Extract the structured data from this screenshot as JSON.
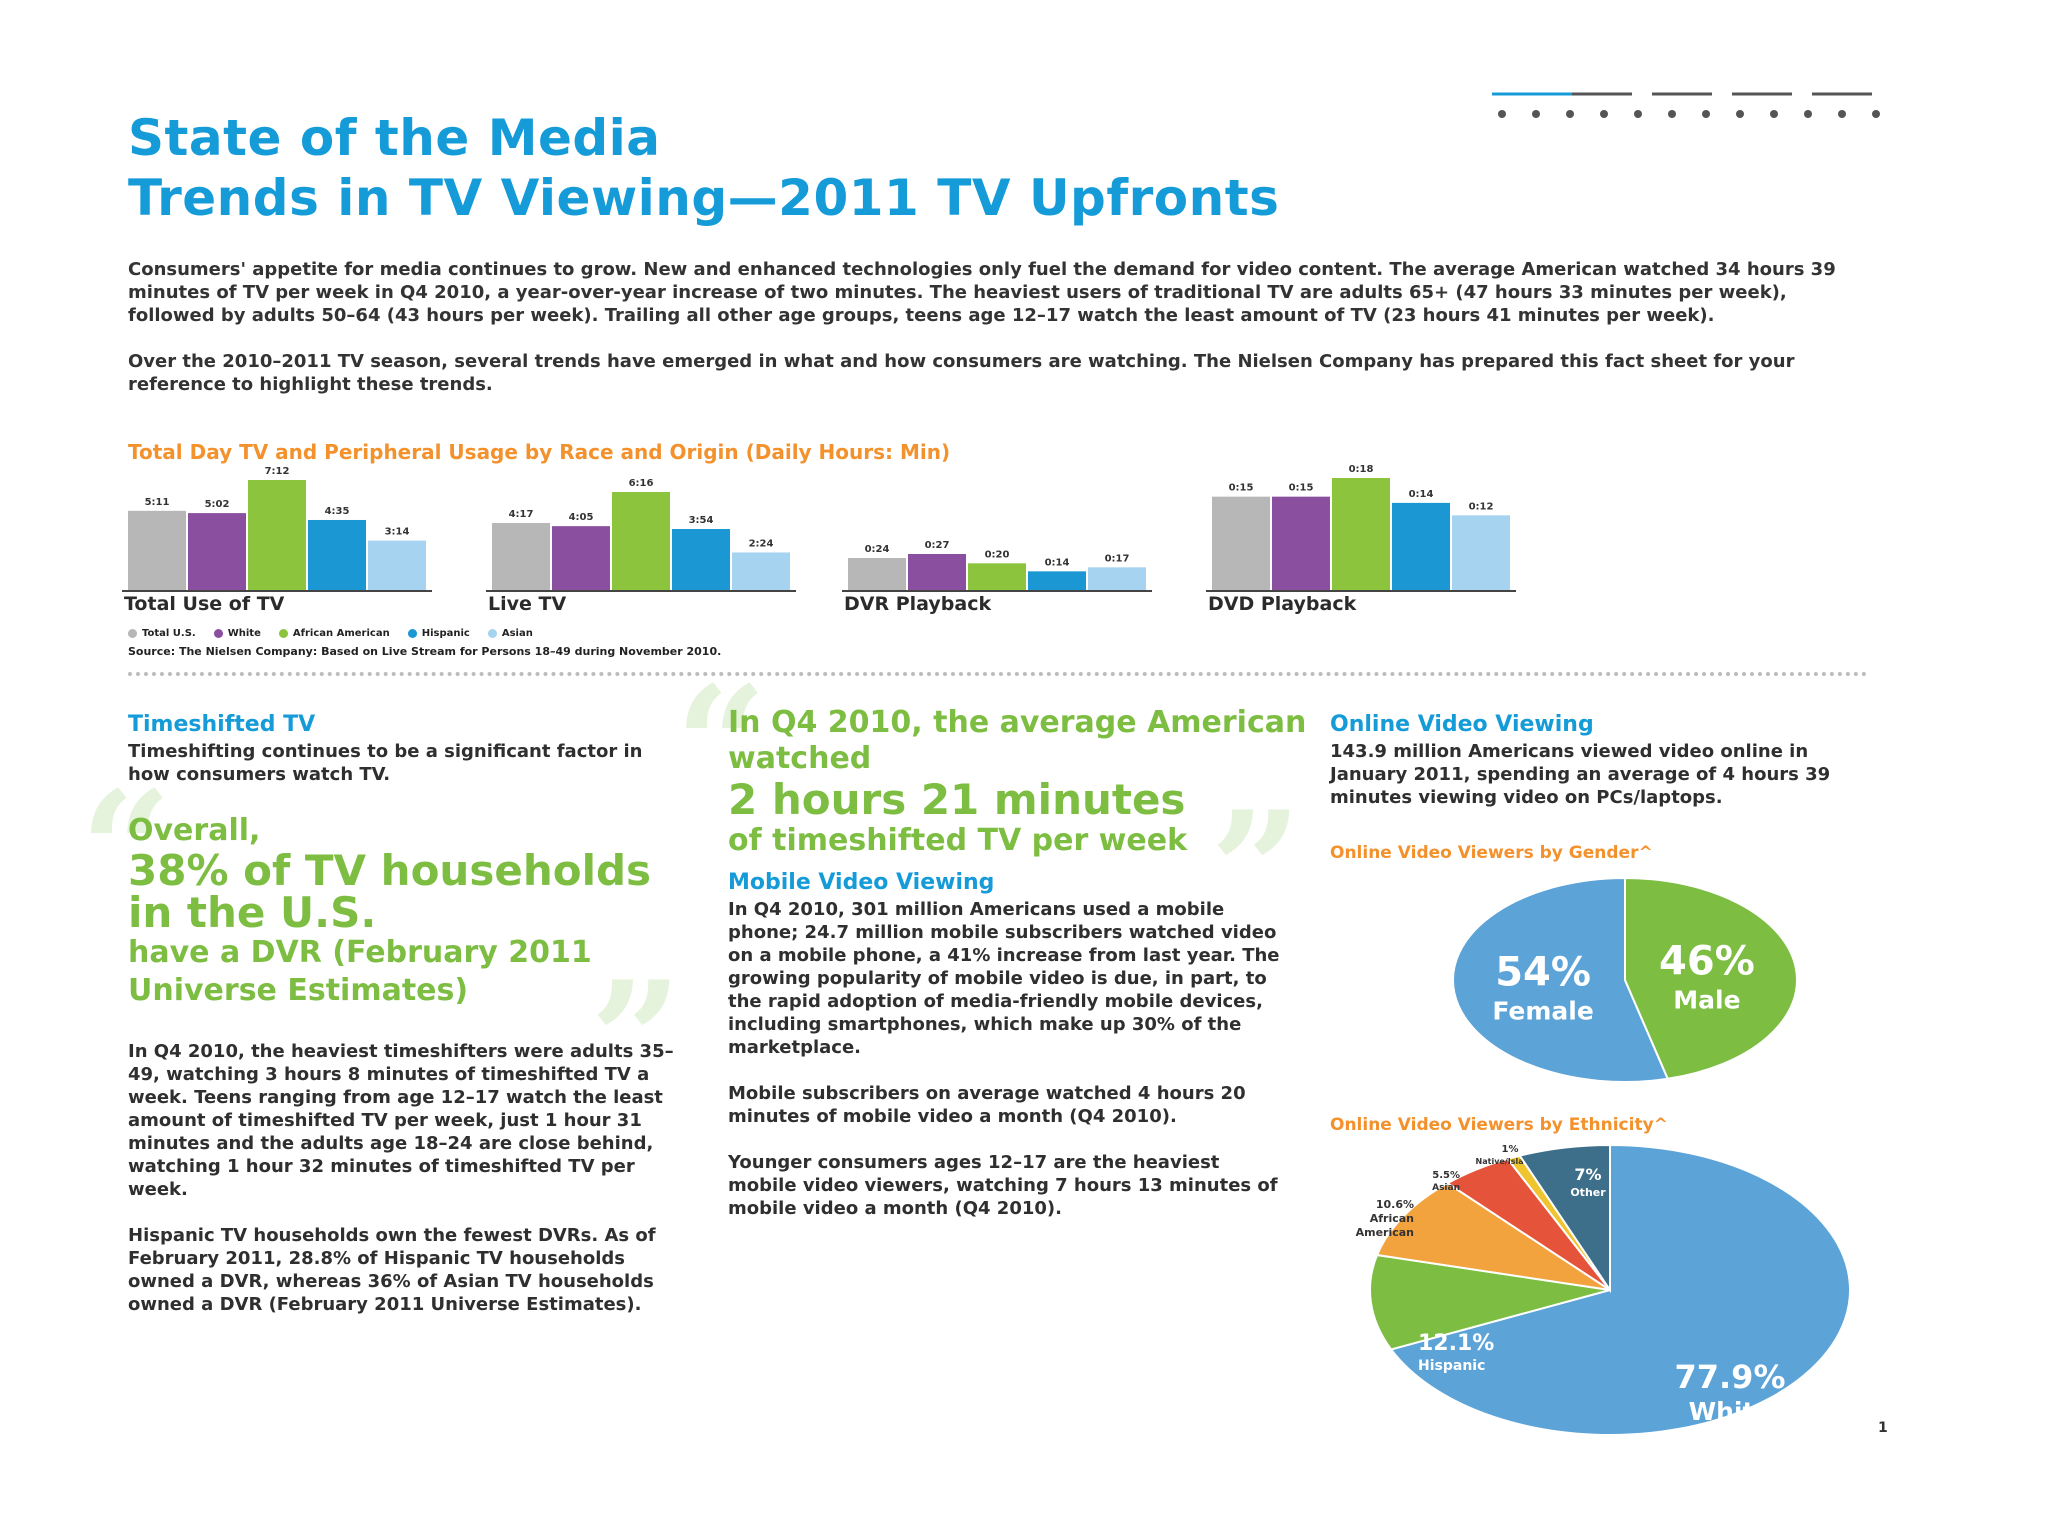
{
  "header": {
    "title_line1": "State of the Media",
    "title_line2": "Trends in TV Viewing—2011 TV Upfronts"
  },
  "intro": {
    "p1": "Consumers' appetite for media continues to grow. New and enhanced technologies only fuel the demand for video content. The average American watched 34 hours 39 minutes of TV per week in Q4 2010, a year-over-year increase of two minutes. The heaviest users of traditional TV are adults 65+ (47 hours 33 minutes per week), followed by adults 50–64 (43 hours per week). Trailing all other age groups, teens age 12–17 watch the least amount of TV (23 hours 41 minutes per week).",
    "p2": "Over the 2010–2011 TV season, several trends have emerged in what and how consumers are watching. The Nielsen Company has prepared this fact sheet for your reference to highlight these trends."
  },
  "colors": {
    "total_us": "#b7b7b7",
    "white": "#8b4fa0",
    "african_american": "#8cc43d",
    "hispanic": "#1b97d4",
    "asian": "#a6d3ef",
    "title_blue": "#149bd8",
    "orange": "#f3922d",
    "green": "#7cbd42"
  },
  "chart_data": [
    {
      "type": "bar",
      "title": "Total Day TV and Peripheral Usage by Race and Origin (Daily Hours: Min)",
      "categories": [
        "Total Use of TV",
        "Live TV",
        "DVR Playback",
        "DVD Playback"
      ],
      "series": [
        {
          "name": "Total U.S.",
          "labels": [
            "5:11",
            "4:17",
            "0:24",
            "0:15"
          ],
          "values": [
            311,
            257,
            24,
            15
          ]
        },
        {
          "name": "White",
          "labels": [
            "5:02",
            "4:05",
            "0:27",
            "0:15"
          ],
          "values": [
            302,
            245,
            27,
            15
          ]
        },
        {
          "name": "African American",
          "labels": [
            "7:12",
            "6:16",
            "0:20",
            "0:18"
          ],
          "values": [
            432,
            376,
            20,
            18
          ]
        },
        {
          "name": "Hispanic",
          "labels": [
            "4:35",
            "3:54",
            "0:14",
            "0:14"
          ],
          "values": [
            275,
            234,
            14,
            14
          ]
        },
        {
          "name": "Asian",
          "labels": [
            "3:14",
            "2:24",
            "0:17",
            "0:12"
          ],
          "values": [
            194,
            144,
            17,
            12
          ]
        }
      ],
      "source": "Source: The Nielsen Company: Based on Live Stream for Persons 18–49 during November 2010."
    },
    {
      "type": "pie",
      "title": "Online Video Viewers by Gender^",
      "slices": [
        {
          "label": "Female",
          "value": 54,
          "display": "54%"
        },
        {
          "label": "Male",
          "value": 46,
          "display": "46%"
        }
      ]
    },
    {
      "type": "pie",
      "title": "Online Video Viewers by Ethnicity^",
      "slices": [
        {
          "label": "White",
          "value": 77.9,
          "display": "77.9%"
        },
        {
          "label": "Hispanic",
          "value": 12.1,
          "display": "12.1%"
        },
        {
          "label": "African American",
          "value": 10.6,
          "display": "10.6%"
        },
        {
          "label": "Asian",
          "value": 5.5,
          "display": "5.5%"
        },
        {
          "label": "Native/Islander",
          "value": 1,
          "display": "1%"
        },
        {
          "label": "Other",
          "value": 7,
          "display": "7%"
        }
      ]
    }
  ],
  "timeshifted": {
    "heading": "Timeshifted TV",
    "lead": "Timeshifting continues to be a significant factor in how consumers watch TV.",
    "quote_line1": "Overall,",
    "quote_big": "38% of TV households in the U.S.",
    "quote_rest": "have a DVR (February 2011 Universe Estimates)",
    "p1": "In Q4 2010, the heaviest timeshifters were adults 35–49, watching 3 hours 8 minutes of timeshifted TV a week. Teens ranging from age 12–17 watch the least amount of timeshifted TV per week, just 1 hour 31 minutes and the adults age 18–24 are close behind, watching 1 hour 32 minutes of timeshifted TV per week.",
    "p2": "Hispanic TV households own the fewest DVRs. As of February 2011, 28.8% of Hispanic TV households owned a DVR, whereas 36% of Asian TV households owned a DVR (February 2011 Universe Estimates)."
  },
  "center_quote": {
    "line1": "In Q4 2010, the average American watched",
    "big": "2 hours 21 minutes",
    "line3": "of timeshifted TV per week"
  },
  "mobile": {
    "heading": "Mobile Video Viewing",
    "p1": "In Q4 2010, 301 million Americans used a mobile phone; 24.7 million mobile subscribers watched video on a mobile phone, a 41% increase from last year. The growing popularity of mobile video is due, in part, to the rapid adoption of media-friendly mobile devices, including smartphones, which make up 30% of the marketplace.",
    "p2": "Mobile subscribers on average watched 4 hours 20 minutes of mobile video a month (Q4 2010).",
    "p3": "Younger consumers ages 12–17 are the heaviest mobile video viewers, watching 7 hours 13 minutes of mobile video a month (Q4 2010)."
  },
  "online": {
    "heading": "Online Video Viewing",
    "p1": "143.9 million Americans viewed video online in January 2011, spending an average of 4 hours 39 minutes viewing video on PCs/laptops."
  },
  "page_number": "1"
}
